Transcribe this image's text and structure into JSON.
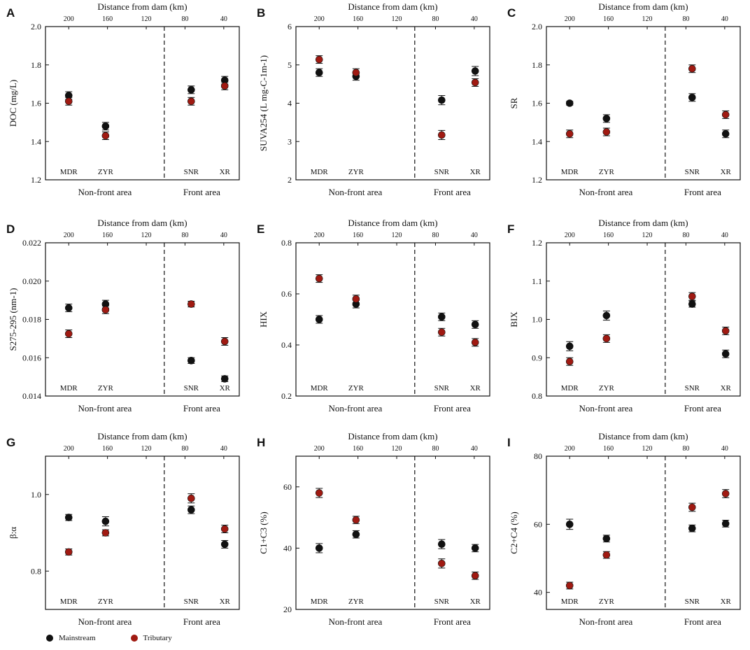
{
  "colors": {
    "mainstream": "#111111",
    "tributary": "#a01a12",
    "axis": "#111111"
  },
  "shared": {
    "top_axis_label": "Distance from dam (km)",
    "top_ticks": [
      "200",
      "160",
      "120",
      "80",
      "40"
    ],
    "rivers": [
      "MDR",
      "ZYR",
      "SNR",
      "XR"
    ],
    "area_labels": [
      "Non-front area",
      "Front area"
    ]
  },
  "legend": [
    {
      "key": "mainstream",
      "label": "Mainstream"
    },
    {
      "key": "tributary",
      "label": "Tributary"
    }
  ],
  "chart_data": [
    {
      "panel": "A",
      "type": "scatter",
      "ylabel": "DOC (mg/L)",
      "ylim": [
        1.2,
        2.0
      ],
      "yticks": [
        "1.2",
        "1.4",
        "1.6",
        "1.8",
        "2.0"
      ],
      "series": [
        {
          "name": "Mainstream",
          "values": [
            1.64,
            1.48,
            1.67,
            1.72
          ],
          "err": [
            0.02,
            0.02,
            0.02,
            0.02
          ]
        },
        {
          "name": "Tributary",
          "values": [
            1.61,
            1.43,
            1.61,
            1.69
          ],
          "err": [
            0.02,
            0.02,
            0.02,
            0.02
          ]
        }
      ]
    },
    {
      "panel": "B",
      "type": "scatter",
      "ylabel": "SUVA254 (L mg-C-1m-1)",
      "ylim": [
        2,
        6
      ],
      "yticks": [
        "2",
        "3",
        "4",
        "5",
        "6"
      ],
      "series": [
        {
          "name": "Mainstream",
          "values": [
            4.8,
            4.7,
            4.08,
            4.84
          ],
          "err": [
            0.1,
            0.1,
            0.12,
            0.12
          ]
        },
        {
          "name": "Tributary",
          "values": [
            5.14,
            4.8,
            3.17,
            4.54
          ],
          "err": [
            0.1,
            0.1,
            0.12,
            0.1
          ]
        }
      ]
    },
    {
      "panel": "C",
      "type": "scatter",
      "ylabel": "SR",
      "ylim": [
        1.2,
        2.0
      ],
      "yticks": [
        "1.2",
        "1.4",
        "1.6",
        "1.8",
        "2.0"
      ],
      "series": [
        {
          "name": "Mainstream",
          "values": [
            1.6,
            1.52,
            1.63,
            1.44
          ],
          "err": [
            0.01,
            0.02,
            0.02,
            0.02
          ]
        },
        {
          "name": "Tributary",
          "values": [
            1.44,
            1.45,
            1.78,
            1.54
          ],
          "err": [
            0.02,
            0.02,
            0.02,
            0.02
          ]
        }
      ]
    },
    {
      "panel": "D",
      "type": "scatter",
      "ylabel": "S275-295 (nm-1)",
      "ylim": [
        0.014,
        0.022
      ],
      "yticks": [
        "0.014",
        "0.016",
        "0.018",
        "0.020",
        "0.022"
      ],
      "series": [
        {
          "name": "Mainstream",
          "values": [
            0.0186,
            0.0188,
            0.01585,
            0.0149
          ],
          "err": [
            0.0002,
            0.0002,
            0.00015,
            0.00015
          ]
        },
        {
          "name": "Tributary",
          "values": [
            0.01725,
            0.0185,
            0.0188,
            0.01685
          ],
          "err": [
            0.0002,
            0.0002,
            0.00015,
            0.0002
          ]
        }
      ]
    },
    {
      "panel": "E",
      "type": "scatter",
      "ylabel": "HIX",
      "ylim": [
        0.2,
        0.8
      ],
      "yticks": [
        "0.2",
        "0.4",
        "0.6",
        "0.8"
      ],
      "series": [
        {
          "name": "Mainstream",
          "values": [
            0.5,
            0.56,
            0.51,
            0.48
          ],
          "err": [
            0.015,
            0.015,
            0.015,
            0.015
          ]
        },
        {
          "name": "Tributary",
          "values": [
            0.66,
            0.58,
            0.45,
            0.41
          ],
          "err": [
            0.015,
            0.015,
            0.015,
            0.015
          ]
        }
      ]
    },
    {
      "panel": "F",
      "type": "scatter",
      "ylabel": "BIX",
      "ylim": [
        0.8,
        1.2
      ],
      "yticks": [
        "0.8",
        "0.9",
        "1.0",
        "1.1",
        "1.2"
      ],
      "series": [
        {
          "name": "Mainstream",
          "values": [
            0.93,
            1.01,
            1.04,
            0.91
          ],
          "err": [
            0.012,
            0.012,
            0.008,
            0.01
          ]
        },
        {
          "name": "Tributary",
          "values": [
            0.89,
            0.95,
            1.06,
            0.97
          ],
          "err": [
            0.01,
            0.01,
            0.01,
            0.01
          ]
        }
      ]
    },
    {
      "panel": "G",
      "type": "scatter",
      "ylabel": "β:α",
      "ylim": [
        0.7,
        1.1
      ],
      "yticks": [
        "0.8",
        "1.0"
      ],
      "series": [
        {
          "name": "Mainstream",
          "values": [
            0.94,
            0.93,
            0.96,
            0.87
          ],
          "err": [
            0.008,
            0.012,
            0.01,
            0.01
          ]
        },
        {
          "name": "Tributary",
          "values": [
            0.85,
            0.9,
            0.99,
            0.91
          ],
          "err": [
            0.008,
            0.008,
            0.012,
            0.01
          ]
        }
      ]
    },
    {
      "panel": "H",
      "type": "scatter",
      "ylabel": "C1+C3 (%)",
      "ylim": [
        20,
        70
      ],
      "yticks": [
        "20",
        "40",
        "60"
      ],
      "series": [
        {
          "name": "Mainstream",
          "values": [
            40,
            44.5,
            41.3,
            40
          ],
          "err": [
            1.5,
            1.2,
            1.5,
            1.2
          ]
        },
        {
          "name": "Tributary",
          "values": [
            58,
            49.2,
            35,
            31
          ],
          "err": [
            1.5,
            1.2,
            1.5,
            1.2
          ]
        }
      ]
    },
    {
      "panel": "I",
      "type": "scatter",
      "ylabel": "C2+C4 (%)",
      "ylim": [
        35,
        80
      ],
      "yticks": [
        "40",
        "60",
        "80"
      ],
      "series": [
        {
          "name": "Mainstream",
          "values": [
            60,
            55.8,
            58.8,
            60.2
          ],
          "err": [
            1.5,
            1.0,
            1.0,
            1.0
          ]
        },
        {
          "name": "Tributary",
          "values": [
            42,
            51,
            65,
            69
          ],
          "err": [
            1.0,
            1.0,
            1.2,
            1.2
          ]
        }
      ]
    }
  ]
}
